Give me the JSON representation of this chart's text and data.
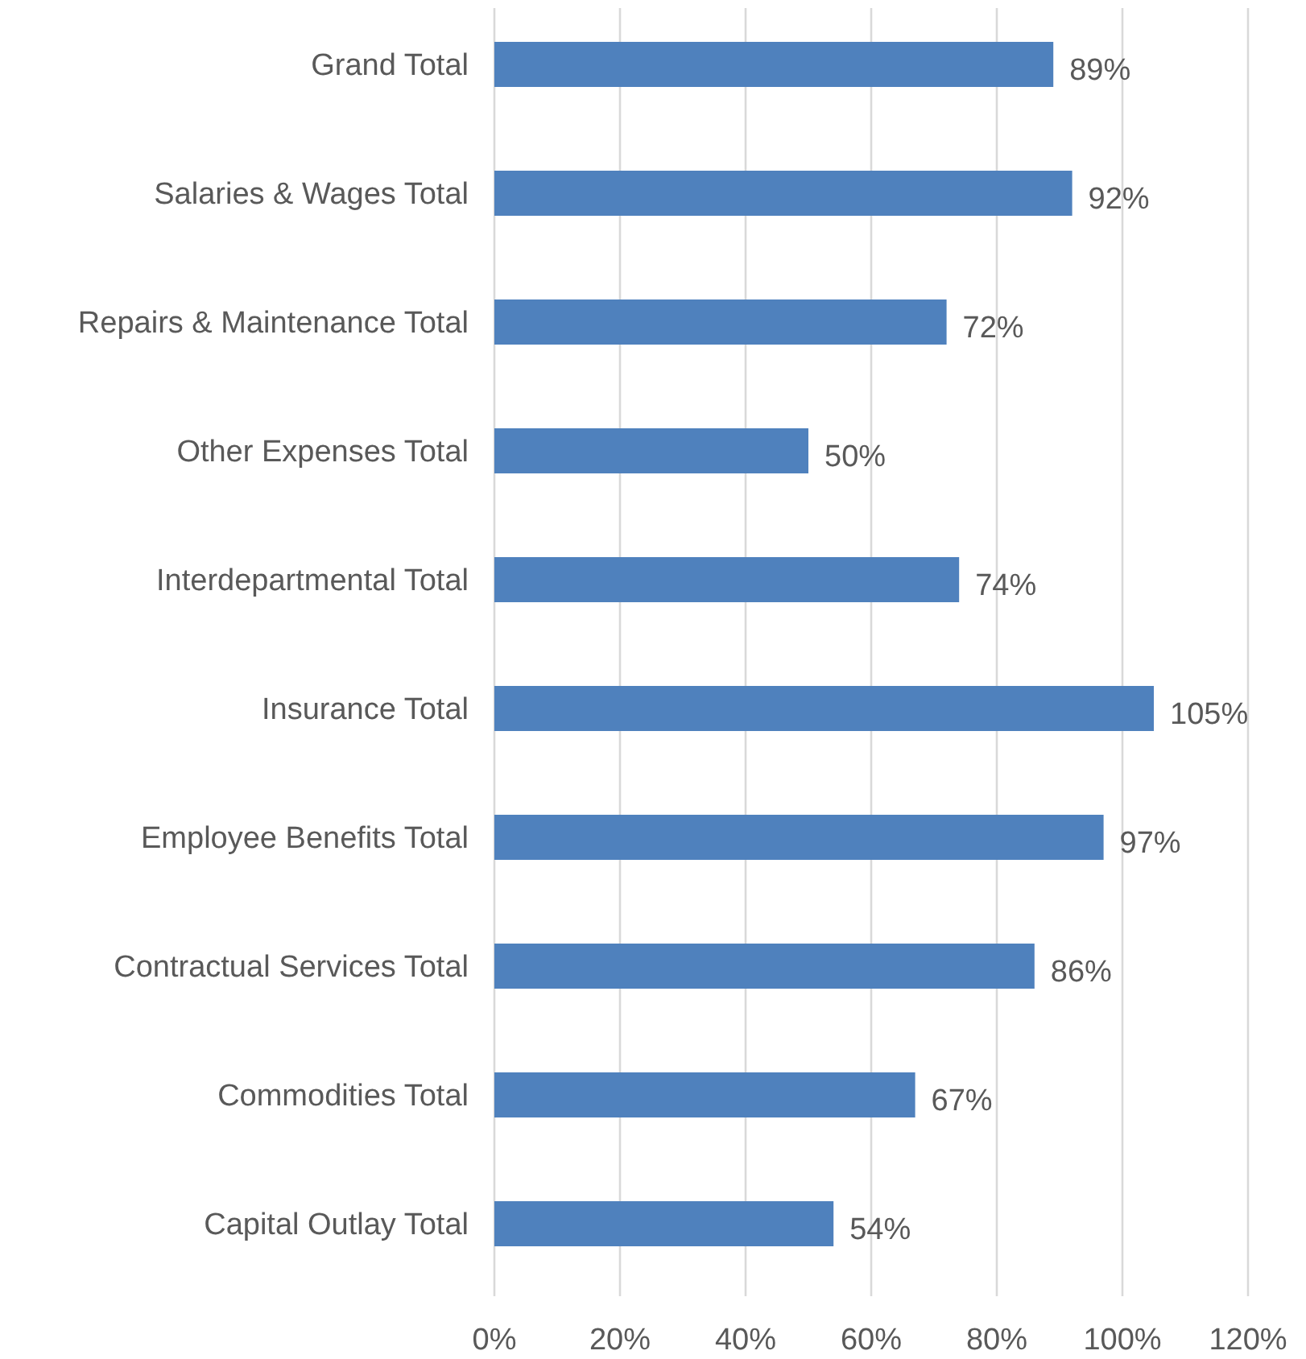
{
  "chart_data": {
    "type": "bar",
    "orientation": "horizontal",
    "categories": [
      "Grand Total",
      "Salaries & Wages Total",
      "Repairs & Maintenance Total",
      "Other Expenses Total",
      "Interdepartmental Total",
      "Insurance Total",
      "Employee Benefits Total",
      "Contractual Services Total",
      "Commodities Total",
      "Capital Outlay Total"
    ],
    "values": [
      89,
      92,
      72,
      50,
      74,
      105,
      97,
      86,
      67,
      54
    ],
    "value_labels": [
      "89%",
      "92%",
      "72%",
      "50%",
      "74%",
      "105%",
      "97%",
      "86%",
      "67%",
      "54%"
    ],
    "color": "#4f81bd",
    "xlim": [
      0,
      120
    ],
    "xticks": [
      {
        "value": 0,
        "label": "0%"
      },
      {
        "value": 20,
        "label": "20%"
      },
      {
        "value": 40,
        "label": "40%"
      },
      {
        "value": 60,
        "label": "60%"
      },
      {
        "value": 80,
        "label": "80%"
      },
      {
        "value": 100,
        "label": "100%"
      },
      {
        "value": 120,
        "label": "120%"
      }
    ],
    "grid": "x"
  }
}
